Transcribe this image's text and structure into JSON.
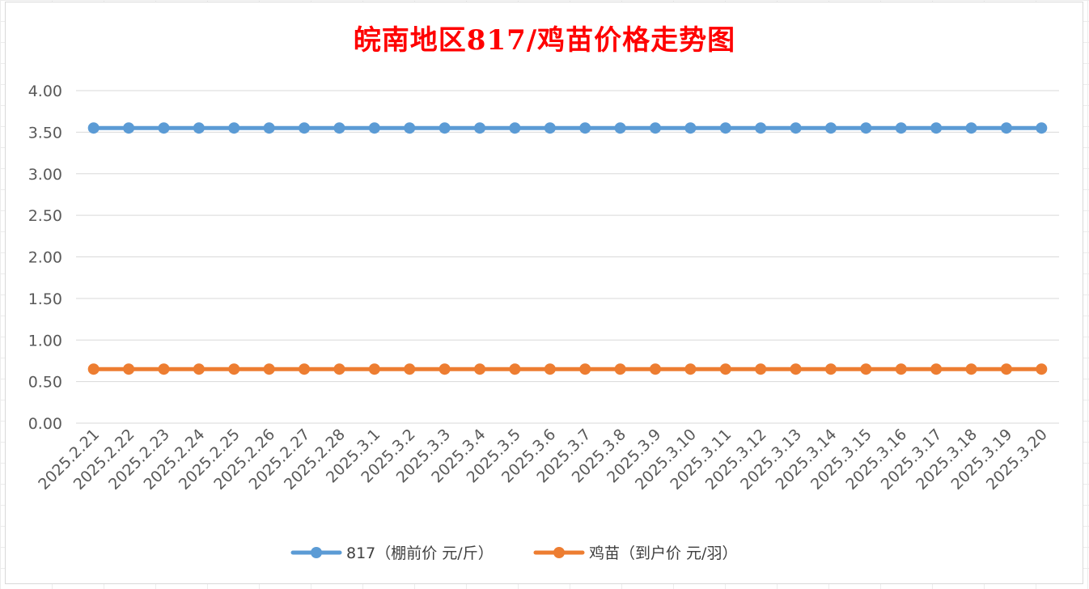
{
  "chart_data": {
    "type": "line",
    "title": "皖南地区817/鸡苗价格走势图",
    "categories": [
      "2025.2.21",
      "2025.2.22",
      "2025.2.23",
      "2025.2.24",
      "2025.2.25",
      "2025.2.26",
      "2025.2.27",
      "2025.2.28",
      "2025.3.1",
      "2025.3.2",
      "2025.3.3",
      "2025.3.4",
      "2025.3.5",
      "2025.3.6",
      "2025.3.7",
      "2025.3.8",
      "2025.3.9",
      "2025.3.10",
      "2025.3.11",
      "2025.3.12",
      "2025.3.13",
      "2025.3.14",
      "2025.3.15",
      "2025.3.16",
      "2025.3.17",
      "2025.3.18",
      "2025.3.19",
      "2025.3.20"
    ],
    "series": [
      {
        "name": "817（棚前价 元/斤）",
        "color": "#5b9bd5",
        "values": [
          3.55,
          3.55,
          3.55,
          3.55,
          3.55,
          3.55,
          3.55,
          3.55,
          3.55,
          3.55,
          3.55,
          3.55,
          3.55,
          3.55,
          3.55,
          3.55,
          3.55,
          3.55,
          3.55,
          3.55,
          3.55,
          3.55,
          3.55,
          3.55,
          3.55,
          3.55,
          3.55,
          3.55
        ]
      },
      {
        "name": "鸡苗（到户价 元/羽）",
        "color": "#ed7d31",
        "values": [
          0.65,
          0.65,
          0.65,
          0.65,
          0.65,
          0.65,
          0.65,
          0.65,
          0.65,
          0.65,
          0.65,
          0.65,
          0.65,
          0.65,
          0.65,
          0.65,
          0.65,
          0.65,
          0.65,
          0.65,
          0.65,
          0.65,
          0.65,
          0.65,
          0.65,
          0.65,
          0.65,
          0.65
        ]
      }
    ],
    "yticks": [
      "0.00",
      "0.50",
      "1.00",
      "1.50",
      "2.00",
      "2.50",
      "3.00",
      "3.50",
      "4.00"
    ],
    "ylim": [
      0,
      4
    ],
    "grid": true,
    "legend_position": "bottom"
  }
}
